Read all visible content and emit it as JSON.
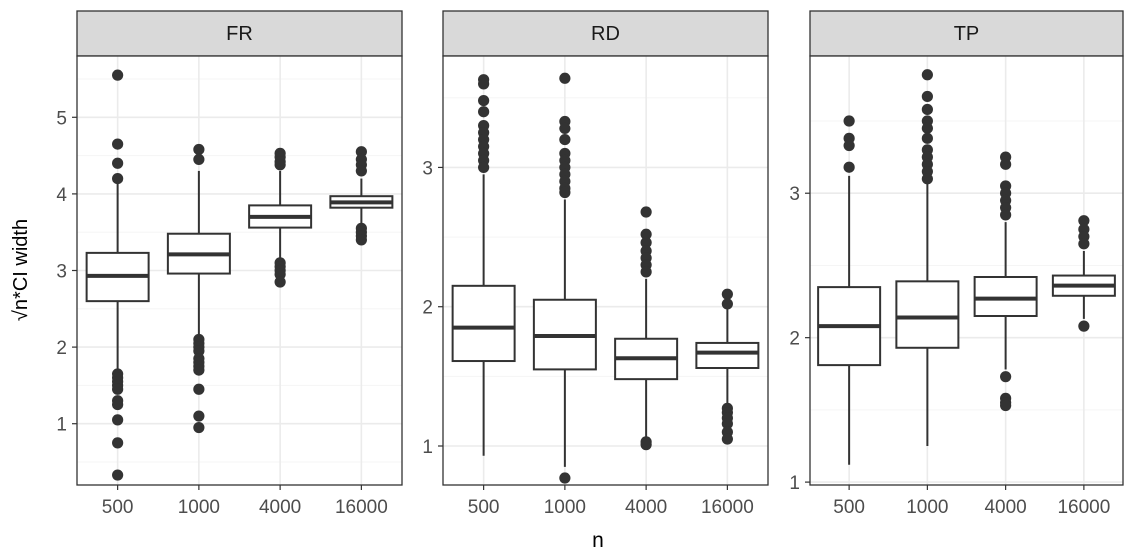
{
  "chart_data": {
    "type": "boxplot",
    "xlabel": "n",
    "ylabel_prefix": "√",
    "ylabel_rest": "n*CI width",
    "categories": [
      "500",
      "1000",
      "4000",
      "16000"
    ],
    "panels": [
      {
        "title": "FR",
        "ylim": [
          0.2,
          5.8
        ],
        "yticks": [
          1,
          2,
          3,
          4,
          5
        ],
        "ytick_labels": [
          "1",
          "2",
          "3",
          "4",
          "5"
        ],
        "boxes": [
          {
            "q1": 2.6,
            "median": 2.93,
            "q3": 3.23,
            "whisker_low": 1.7,
            "whisker_high": 4.15,
            "outliers": [
              5.55,
              4.65,
              4.4,
              4.2,
              1.65,
              1.6,
              1.55,
              1.5,
              1.45,
              1.3,
              1.25,
              1.05,
              0.75,
              0.33
            ]
          },
          {
            "q1": 2.96,
            "median": 3.21,
            "q3": 3.48,
            "whisker_low": 2.15,
            "whisker_high": 4.3,
            "outliers": [
              4.58,
              4.45,
              2.1,
              2.05,
              2.0,
              1.95,
              1.85,
              1.8,
              1.75,
              1.7,
              1.45,
              1.1,
              0.95
            ]
          },
          {
            "q1": 3.56,
            "median": 3.7,
            "q3": 3.85,
            "whisker_low": 3.15,
            "whisker_high": 4.3,
            "outliers": [
              4.53,
              4.48,
              4.42,
              4.38,
              3.1,
              3.05,
              3.0,
              2.95,
              2.85
            ]
          },
          {
            "q1": 3.82,
            "median": 3.89,
            "q3": 3.97,
            "whisker_low": 3.58,
            "whisker_high": 4.2,
            "outliers": [
              4.55,
              4.45,
              4.38,
              4.3,
              3.55,
              3.5,
              3.45,
              3.4
            ]
          }
        ]
      },
      {
        "title": "RD",
        "ylim": [
          0.72,
          3.8
        ],
        "yticks": [
          1,
          2,
          3
        ],
        "ytick_labels": [
          "1",
          "2",
          "3"
        ],
        "boxes": [
          {
            "q1": 1.61,
            "median": 1.85,
            "q3": 2.15,
            "whisker_low": 0.93,
            "whisker_high": 2.95,
            "outliers": [
              3.63,
              3.6,
              3.48,
              3.4,
              3.3,
              3.25,
              3.2,
              3.15,
              3.1,
              3.05,
              3.0
            ]
          },
          {
            "q1": 1.55,
            "median": 1.79,
            "q3": 2.05,
            "whisker_low": 0.85,
            "whisker_high": 2.77,
            "outliers": [
              3.64,
              3.33,
              3.28,
              3.2,
              3.1,
              3.05,
              3.0,
              2.95,
              2.9,
              2.85,
              2.82,
              0.77
            ]
          },
          {
            "q1": 1.48,
            "median": 1.63,
            "q3": 1.77,
            "whisker_low": 1.05,
            "whisker_high": 2.2,
            "outliers": [
              2.68,
              2.52,
              2.46,
              2.4,
              2.35,
              2.3,
              2.25,
              1.03,
              1.01
            ]
          },
          {
            "q1": 1.56,
            "median": 1.67,
            "q3": 1.74,
            "whisker_low": 1.3,
            "whisker_high": 2.0,
            "outliers": [
              2.09,
              2.02,
              1.27,
              1.24,
              1.2,
              1.16,
              1.1,
              1.05
            ]
          }
        ]
      },
      {
        "title": "TP",
        "ylim": [
          0.98,
          3.95
        ],
        "yticks": [
          1,
          2,
          3
        ],
        "ytick_labels": [
          "1",
          "2",
          "3"
        ],
        "boxes": [
          {
            "q1": 1.81,
            "median": 2.08,
            "q3": 2.35,
            "whisker_low": 1.12,
            "whisker_high": 3.12,
            "outliers": [
              3.5,
              3.38,
              3.33,
              3.18
            ]
          },
          {
            "q1": 1.93,
            "median": 2.14,
            "q3": 2.39,
            "whisker_low": 1.25,
            "whisker_high": 3.08,
            "outliers": [
              3.82,
              3.67,
              3.58,
              3.5,
              3.45,
              3.38,
              3.3,
              3.25,
              3.2,
              3.15,
              3.1
            ]
          },
          {
            "q1": 2.15,
            "median": 2.27,
            "q3": 2.42,
            "whisker_low": 1.78,
            "whisker_high": 2.8,
            "outliers": [
              3.25,
              3.2,
              3.05,
              3.0,
              2.95,
              2.9,
              2.85,
              1.73,
              1.58,
              1.55,
              1.53
            ]
          },
          {
            "q1": 2.29,
            "median": 2.36,
            "q3": 2.43,
            "whisker_low": 2.13,
            "whisker_high": 2.6,
            "outliers": [
              2.81,
              2.75,
              2.7,
              2.65,
              2.08
            ]
          }
        ]
      }
    ]
  },
  "colors": {
    "strip_fill": "#d9d9d9",
    "frame": "#333333",
    "grid_major": "#ebebeb",
    "grid_minor": "#f5f5f5",
    "box_line": "#333333",
    "outlier": "#333333",
    "tick_text": "#4d4d4d",
    "axis_title": "#000000"
  }
}
